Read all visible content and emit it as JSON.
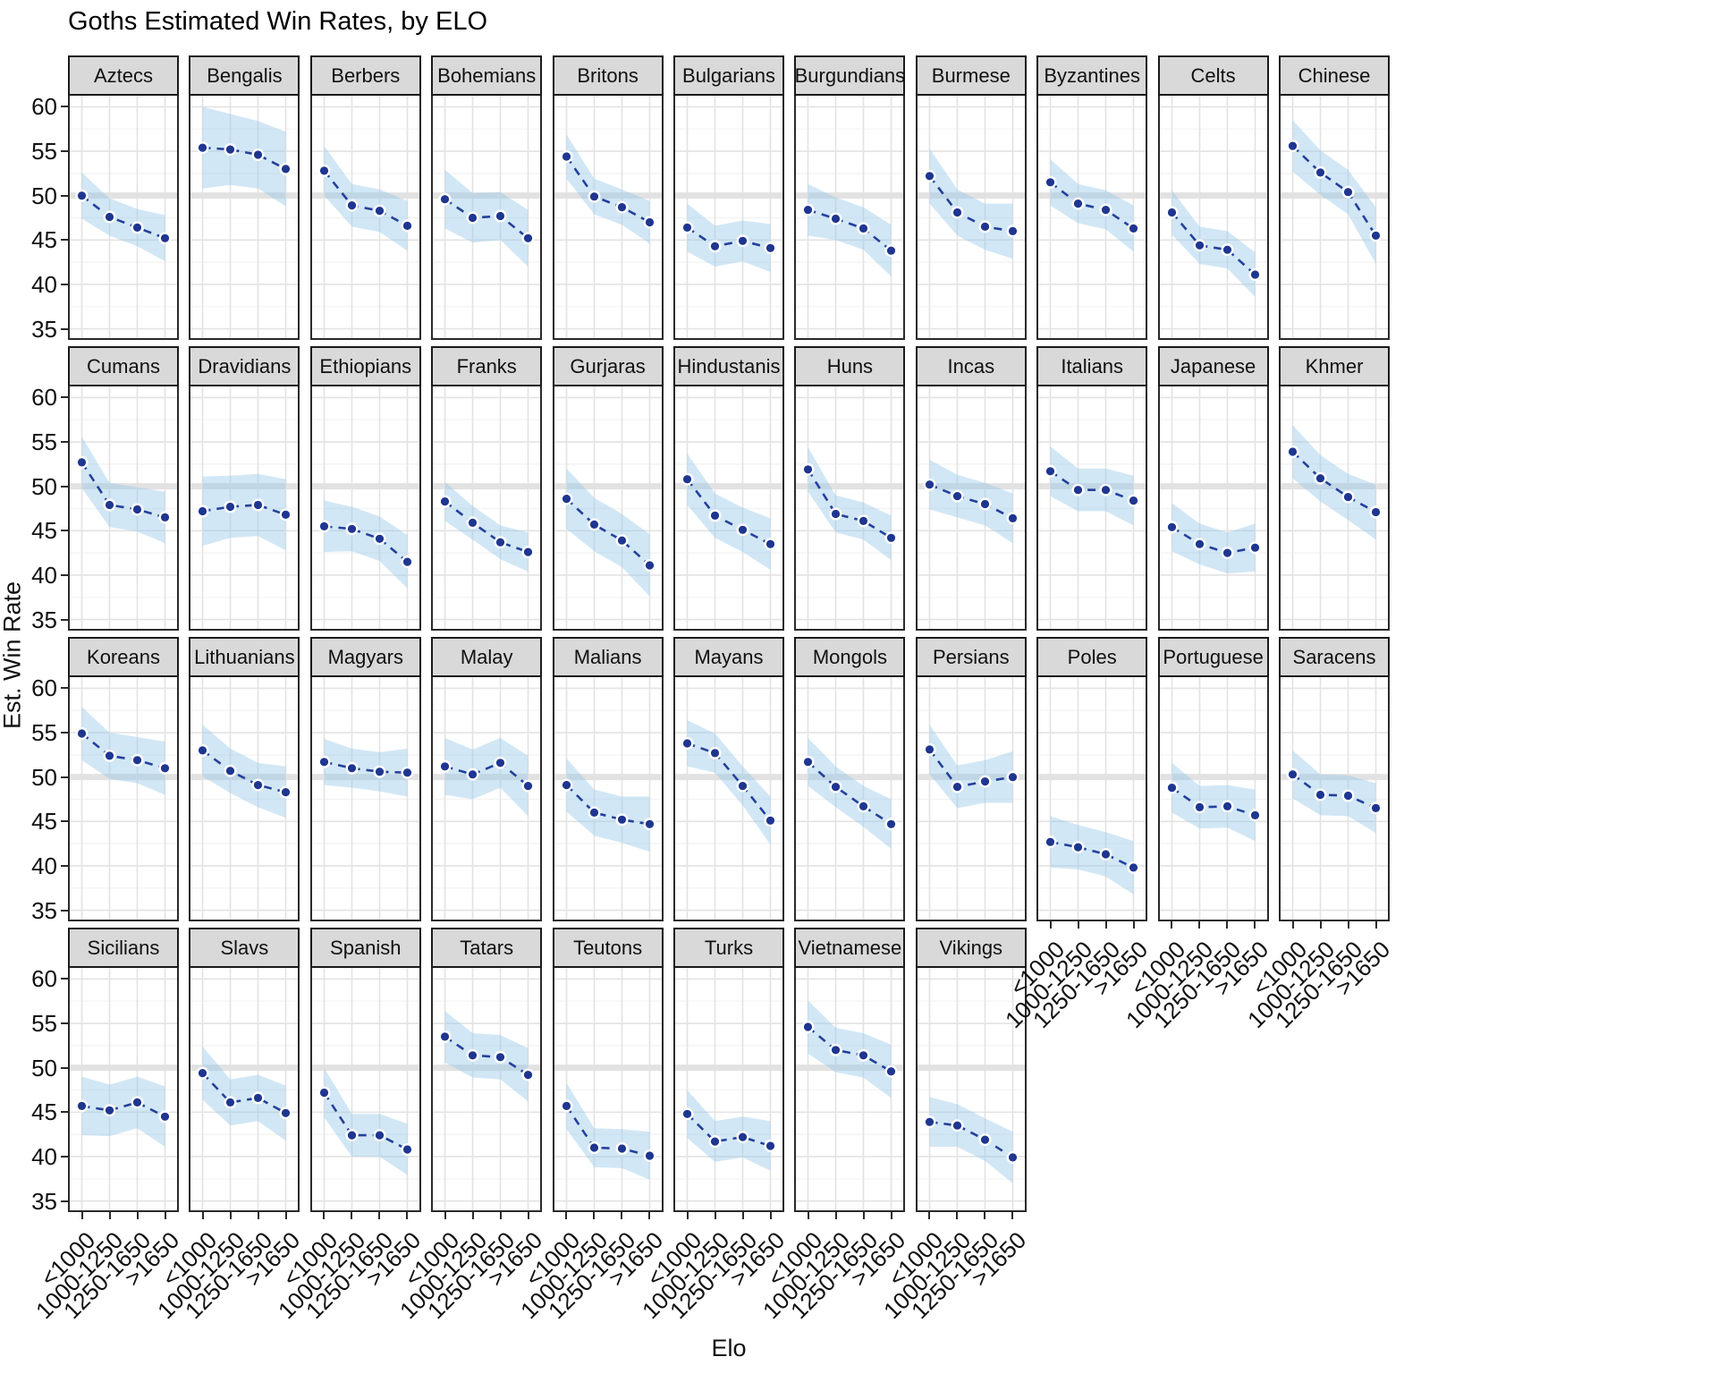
{
  "title": "Goths Estimated Win Rates, by ELO",
  "axes": {
    "x_label": "Elo",
    "y_label": "Est. Win Rate",
    "x_categories": [
      "<1000",
      "1000-1250",
      "1250-1650",
      ">1650"
    ],
    "y_ticks": [
      60,
      55,
      50,
      45,
      40,
      35
    ],
    "y_minor_ticks": [
      57.5,
      52.5,
      47.5,
      42.5,
      37.5
    ],
    "y_range": [
      33.75,
      61.25
    ],
    "reference_line": 50
  },
  "colors": {
    "line": "#24419b",
    "point": "#1e3690",
    "point_halo": "#ffffff",
    "ribbon": "rgba(147,197,231,0.42)",
    "reference_line": "#e2e2e2",
    "grid_major": "#e3e3e3",
    "grid_minor": "#f4f4f4",
    "strip_background": "#d9d9d9",
    "strip_border": "#1a1a1a",
    "panel_border": "#2a2a2a"
  },
  "chart_data": {
    "type": "line",
    "title": "Goths Estimated Win Rates, by ELO",
    "xlabel": "Elo",
    "ylabel": "Est. Win Rate",
    "categories": [
      "<1000",
      "1000-1250",
      "1250-1650",
      ">1650"
    ],
    "ylim": [
      33.75,
      61.25
    ],
    "grid": true,
    "legend": false,
    "ribbon_note": "values = estimated win rate; ci = half-width of shaded confidence band",
    "facets": [
      {
        "name": "Aztecs",
        "values": [
          50.0,
          47.6,
          46.4,
          45.2
        ],
        "ci": [
          2.6,
          2.1,
          2.1,
          2.6
        ]
      },
      {
        "name": "Bengalis",
        "values": [
          55.4,
          55.2,
          54.6,
          53.0
        ],
        "ci": [
          4.6,
          4.0,
          3.8,
          4.2
        ]
      },
      {
        "name": "Berbers",
        "values": [
          52.8,
          48.9,
          48.3,
          46.6
        ],
        "ci": [
          2.8,
          2.4,
          2.4,
          2.8
        ]
      },
      {
        "name": "Bohemians",
        "values": [
          49.6,
          47.5,
          47.7,
          45.2
        ],
        "ci": [
          3.3,
          2.8,
          2.7,
          3.2
        ]
      },
      {
        "name": "Britons",
        "values": [
          54.4,
          49.9,
          48.7,
          47.0
        ],
        "ci": [
          2.5,
          2.0,
          2.0,
          2.4
        ]
      },
      {
        "name": "Bulgarians",
        "values": [
          46.4,
          44.3,
          44.9,
          44.1
        ],
        "ci": [
          2.7,
          2.3,
          2.3,
          2.7
        ]
      },
      {
        "name": "Burgundians",
        "values": [
          48.4,
          47.4,
          46.3,
          43.8
        ],
        "ci": [
          2.9,
          2.4,
          2.4,
          2.9
        ]
      },
      {
        "name": "Burmese",
        "values": [
          52.2,
          48.1,
          46.5,
          46.0
        ],
        "ci": [
          3.1,
          2.6,
          2.6,
          3.1
        ]
      },
      {
        "name": "Byzantines",
        "values": [
          51.5,
          49.1,
          48.4,
          46.3
        ],
        "ci": [
          2.6,
          2.2,
          2.2,
          2.6
        ]
      },
      {
        "name": "Celts",
        "values": [
          48.1,
          44.4,
          43.9,
          41.1
        ],
        "ci": [
          2.5,
          2.1,
          2.1,
          2.5
        ]
      },
      {
        "name": "Chinese",
        "values": [
          55.6,
          52.6,
          50.4,
          45.5
        ],
        "ci": [
          2.9,
          2.5,
          2.5,
          3.2
        ]
      },
      {
        "name": "Cumans",
        "values": [
          52.7,
          47.9,
          47.4,
          46.5
        ],
        "ci": [
          2.9,
          2.5,
          2.5,
          2.9
        ]
      },
      {
        "name": "Dravidians",
        "values": [
          47.2,
          47.7,
          47.9,
          46.8
        ],
        "ci": [
          3.9,
          3.5,
          3.5,
          4.0
        ]
      },
      {
        "name": "Ethiopians",
        "values": [
          45.5,
          45.2,
          44.1,
          41.5
        ],
        "ci": [
          2.9,
          2.5,
          2.5,
          3.0
        ]
      },
      {
        "name": "Franks",
        "values": [
          48.3,
          45.9,
          43.7,
          42.6
        ],
        "ci": [
          2.2,
          1.9,
          1.9,
          2.2
        ]
      },
      {
        "name": "Gurjaras",
        "values": [
          48.6,
          45.7,
          43.9,
          41.1
        ],
        "ci": [
          3.4,
          3.0,
          3.0,
          3.5
        ]
      },
      {
        "name": "Hindustanis",
        "values": [
          50.8,
          46.7,
          45.1,
          43.5
        ],
        "ci": [
          2.9,
          2.5,
          2.5,
          2.9
        ]
      },
      {
        "name": "Huns",
        "values": [
          51.9,
          46.9,
          46.1,
          44.2
        ],
        "ci": [
          2.5,
          2.1,
          2.1,
          2.5
        ]
      },
      {
        "name": "Incas",
        "values": [
          50.2,
          48.9,
          48.0,
          46.4
        ],
        "ci": [
          2.8,
          2.4,
          2.4,
          2.8
        ]
      },
      {
        "name": "Italians",
        "values": [
          51.7,
          49.6,
          49.6,
          48.4
        ],
        "ci": [
          2.8,
          2.4,
          2.4,
          2.8
        ]
      },
      {
        "name": "Japanese",
        "values": [
          45.4,
          43.5,
          42.5,
          43.1
        ],
        "ci": [
          2.7,
          2.3,
          2.3,
          2.7
        ]
      },
      {
        "name": "Khmer",
        "values": [
          53.9,
          50.9,
          48.8,
          47.1
        ],
        "ci": [
          3.0,
          2.6,
          2.6,
          3.1
        ]
      },
      {
        "name": "Koreans",
        "values": [
          54.9,
          52.4,
          51.9,
          51.0
        ],
        "ci": [
          3.0,
          2.6,
          2.6,
          3.0
        ]
      },
      {
        "name": "Lithuanians",
        "values": [
          53.0,
          50.7,
          49.1,
          48.3
        ],
        "ci": [
          2.9,
          2.5,
          2.5,
          2.9
        ]
      },
      {
        "name": "Magyars",
        "values": [
          51.7,
          51.0,
          50.6,
          50.5
        ],
        "ci": [
          2.6,
          2.2,
          2.2,
          2.7
        ]
      },
      {
        "name": "Malay",
        "values": [
          51.2,
          50.3,
          51.6,
          49.0
        ],
        "ci": [
          3.2,
          2.8,
          2.8,
          3.4
        ]
      },
      {
        "name": "Malians",
        "values": [
          49.1,
          46.0,
          45.2,
          44.7
        ],
        "ci": [
          3.0,
          2.6,
          2.6,
          3.1
        ]
      },
      {
        "name": "Mayans",
        "values": [
          53.8,
          52.7,
          49.0,
          45.1
        ],
        "ci": [
          2.6,
          2.2,
          2.2,
          2.7
        ]
      },
      {
        "name": "Mongols",
        "values": [
          51.7,
          48.9,
          46.7,
          44.7
        ],
        "ci": [
          2.7,
          2.3,
          2.3,
          2.8
        ]
      },
      {
        "name": "Persians",
        "values": [
          53.1,
          48.9,
          49.5,
          50.0
        ],
        "ci": [
          2.8,
          2.4,
          2.4,
          2.9
        ]
      },
      {
        "name": "Poles",
        "values": [
          42.7,
          42.1,
          41.3,
          39.8
        ],
        "ci": [
          2.9,
          2.5,
          2.5,
          3.0
        ]
      },
      {
        "name": "Portuguese",
        "values": [
          48.8,
          46.6,
          46.7,
          45.7
        ],
        "ci": [
          2.8,
          2.4,
          2.4,
          2.9
        ]
      },
      {
        "name": "Saracens",
        "values": [
          50.3,
          48.0,
          47.9,
          46.5
        ],
        "ci": [
          2.7,
          2.3,
          2.3,
          2.8
        ]
      },
      {
        "name": "Sicilians",
        "values": [
          45.7,
          45.2,
          46.1,
          44.5
        ],
        "ci": [
          3.3,
          2.9,
          2.9,
          3.4
        ]
      },
      {
        "name": "Slavs",
        "values": [
          49.4,
          46.1,
          46.6,
          44.9
        ],
        "ci": [
          3.0,
          2.6,
          2.6,
          3.1
        ]
      },
      {
        "name": "Spanish",
        "values": [
          47.2,
          42.4,
          42.4,
          40.8
        ],
        "ci": [
          2.8,
          2.4,
          2.4,
          2.9
        ]
      },
      {
        "name": "Tatars",
        "values": [
          53.5,
          51.4,
          51.2,
          49.2
        ],
        "ci": [
          2.9,
          2.5,
          2.5,
          3.0
        ]
      },
      {
        "name": "Teutons",
        "values": [
          45.7,
          41.0,
          40.9,
          40.1
        ],
        "ci": [
          2.6,
          2.2,
          2.2,
          2.7
        ]
      },
      {
        "name": "Turks",
        "values": [
          44.8,
          41.7,
          42.2,
          41.2
        ],
        "ci": [
          2.7,
          2.3,
          2.3,
          2.8
        ]
      },
      {
        "name": "Vietnamese",
        "values": [
          54.6,
          52.0,
          51.4,
          49.6
        ],
        "ci": [
          3.0,
          2.5,
          2.5,
          3.0
        ]
      },
      {
        "name": "Vikings",
        "values": [
          43.9,
          43.5,
          41.9,
          39.9
        ],
        "ci": [
          2.8,
          2.4,
          2.4,
          2.9
        ]
      }
    ]
  }
}
